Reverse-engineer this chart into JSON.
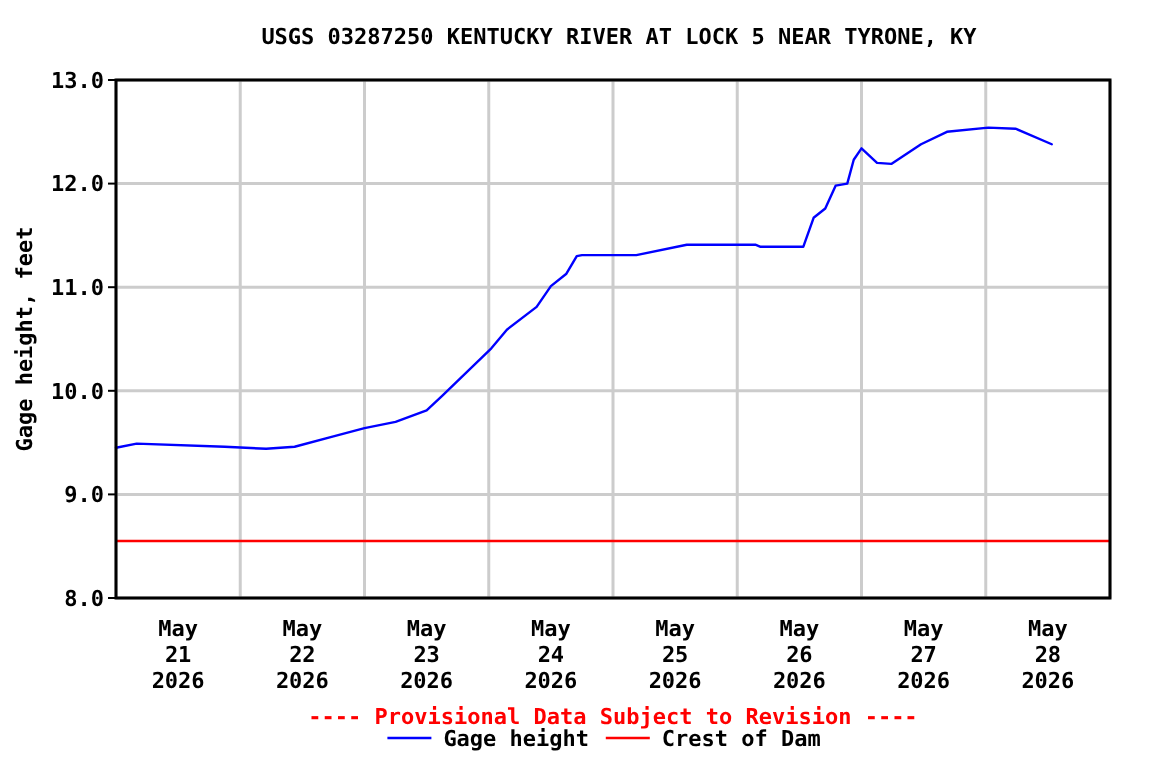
{
  "chart_data": {
    "type": "line",
    "title": "USGS 03287250 KENTUCKY RIVER AT LOCK 5 NEAR TYRONE, KY",
    "ylabel": "Gage height, feet",
    "annotations": [
      "---- Provisional Data Subject to Revision ----"
    ],
    "xlim": [
      "2026-05-21T00:00",
      "2026-05-29T00:00"
    ],
    "xticks": [
      {
        "value": "2026-05-21T00:00",
        "label": null
      },
      {
        "value": "2026-05-21T12:00",
        "label": "May\n21\n2026"
      },
      {
        "value": "2026-05-22T00:00",
        "label": null
      },
      {
        "value": "2026-05-22T12:00",
        "label": "May\n22\n2026"
      },
      {
        "value": "2026-05-23T00:00",
        "label": null
      },
      {
        "value": "2026-05-23T12:00",
        "label": "May\n23\n2026"
      },
      {
        "value": "2026-05-24T00:00",
        "label": null
      },
      {
        "value": "2026-05-24T12:00",
        "label": "May\n24\n2026"
      },
      {
        "value": "2026-05-25T00:00",
        "label": null
      },
      {
        "value": "2026-05-25T12:00",
        "label": "May\n25\n2026"
      },
      {
        "value": "2026-05-26T00:00",
        "label": null
      },
      {
        "value": "2026-05-26T12:00",
        "label": "May\n26\n2026"
      },
      {
        "value": "2026-05-27T00:00",
        "label": null
      },
      {
        "value": "2026-05-27T12:00",
        "label": "May\n27\n2026"
      },
      {
        "value": "2026-05-28T00:00",
        "label": null
      },
      {
        "value": "2026-05-28T12:00",
        "label": "May\n28\n2026"
      },
      {
        "value": "2026-05-29T00:00",
        "label": null
      }
    ],
    "ylim": [
      8,
      13
    ],
    "yticks": [
      {
        "value": 8,
        "label": "8.0"
      },
      {
        "value": 9,
        "label": "9.0"
      },
      {
        "value": 10,
        "label": "10.0"
      },
      {
        "value": 11,
        "label": "11.0"
      },
      {
        "value": 12,
        "label": "12.0"
      },
      {
        "value": 13,
        "label": "13.0"
      }
    ],
    "grid": true,
    "legend": "bottom",
    "marker": "none",
    "line_style": "solid",
    "ref_lines": [
      {
        "axis": "y",
        "value": 8.55,
        "label": "Crest of Dam",
        "color": "#ff0000"
      }
    ],
    "series": [
      {
        "name": "Gage height",
        "color": "#0000ff",
        "x": [
          "2026-05-21T00:00",
          "2026-05-21T04:00",
          "2026-05-21T21:00",
          "2026-05-22T05:00",
          "2026-05-22T10:30",
          "2026-05-22T18:00",
          "2026-05-23T00:00",
          "2026-05-23T06:00",
          "2026-05-23T12:00",
          "2026-05-23T15:00",
          "2026-05-24T00:30",
          "2026-05-24T03:30",
          "2026-05-24T09:15",
          "2026-05-24T12:00",
          "2026-05-24T15:00",
          "2026-05-24T17:00",
          "2026-05-24T18:00",
          "2026-05-24T21:45",
          "2026-05-25T04:30",
          "2026-05-25T14:15",
          "2026-05-26T03:30",
          "2026-05-26T04:30",
          "2026-05-26T12:45",
          "2026-05-26T14:45",
          "2026-05-26T17:00",
          "2026-05-26T19:00",
          "2026-05-26T21:15",
          "2026-05-26T22:30",
          "2026-05-27T00:00",
          "2026-05-27T03:00",
          "2026-05-27T05:45",
          "2026-05-27T11:30",
          "2026-05-27T16:30",
          "2026-05-28T00:30",
          "2026-05-28T05:45",
          "2026-05-28T12:45"
        ],
        "values": [
          9.45,
          9.49,
          9.46,
          9.44,
          9.46,
          9.56,
          9.64,
          9.7,
          9.81,
          9.95,
          10.41,
          10.59,
          10.81,
          11.01,
          11.13,
          11.3,
          11.31,
          11.31,
          11.31,
          11.41,
          11.41,
          11.39,
          11.39,
          11.67,
          11.76,
          11.98,
          12.0,
          12.23,
          12.34,
          12.2,
          12.19,
          12.38,
          12.5,
          12.54,
          12.53,
          12.38
        ]
      }
    ]
  }
}
